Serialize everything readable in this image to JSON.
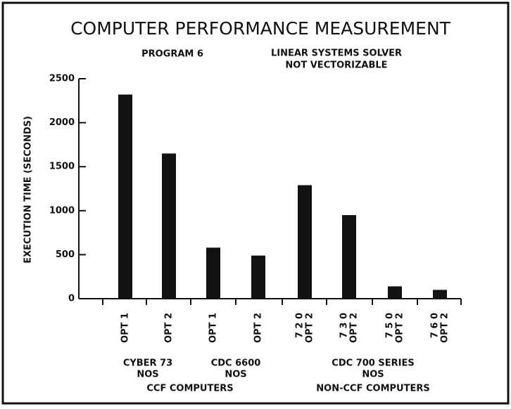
{
  "chart_data": {
    "type": "bar",
    "title": "COMPUTER PERFORMANCE MEASUREMENT",
    "subtitle_left": "PROGRAM  6",
    "subtitle_right": [
      "LINEAR SYSTEMS SOLVER",
      "NOT VECTORIZABLE"
    ],
    "y_label": "EXECUTION TIME (SECONDS)",
    "categories": [
      "OPT 1",
      "OPT 2",
      "OPT 1",
      "OPT 2",
      "OPT 2",
      "OPT 2",
      "OPT 2",
      "OPT 2"
    ],
    "models": [
      null,
      null,
      null,
      null,
      "7 2 0",
      "7 3 0",
      "7 5 0",
      "7 6 0"
    ],
    "groups": [
      "CYBER 73",
      "CDC 6600",
      "CDC 700 SERIES"
    ],
    "group_subtitles": [
      "NOS",
      "NOS",
      "NOS"
    ],
    "supergroups": [
      "CCF COMPUTERS",
      "NON-CCF COMPUTERS"
    ],
    "values": [
      2320,
      1650,
      580,
      490,
      1290,
      950,
      140,
      100
    ],
    "color": "#111111",
    "ylim": [
      0,
      2500
    ],
    "yticks": [
      0,
      500,
      1000,
      1500,
      2000,
      2500
    ],
    "grid": false
  }
}
